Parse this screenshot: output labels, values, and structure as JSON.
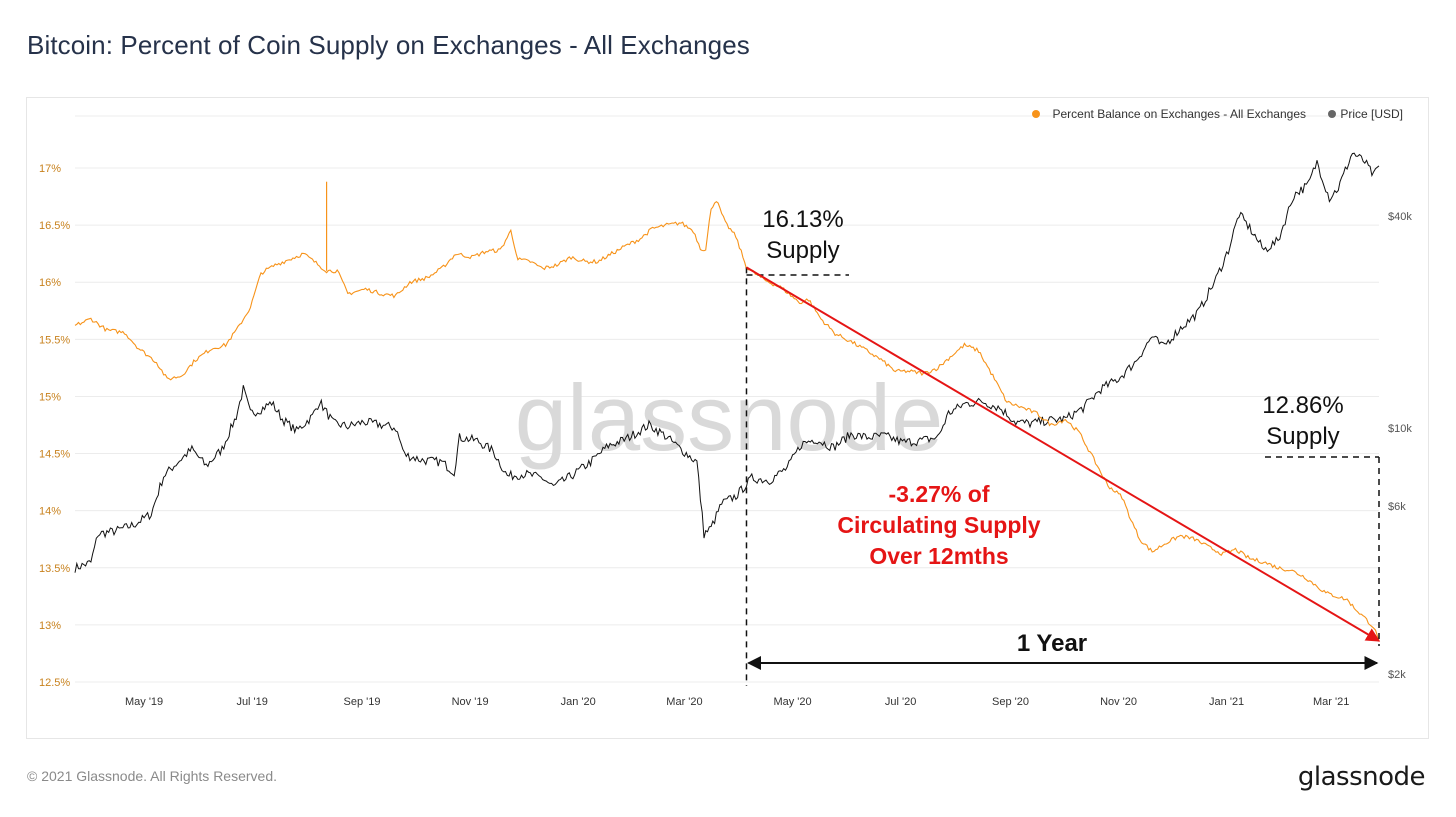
{
  "title": "Bitcoin: Percent of Coin Supply on Exchanges - All Exchanges",
  "footer": {
    "copyright": "© 2021 Glassnode. All Rights Reserved.",
    "logo": "glassnode"
  },
  "colors": {
    "supply": "#F7931A",
    "price": "#111111",
    "annotation_red": "#E51515",
    "grid": "#ececec",
    "axis_text": "#555555",
    "left_axis_text": "#C8821E"
  },
  "chart_data": {
    "type": "line",
    "watermark": "glassnode",
    "legend_position": "top-right",
    "grid": true,
    "legend": [
      {
        "name": "Percent Balance on Exchanges - All Exchanges",
        "color": "#F7931A"
      },
      {
        "name": "Price [USD]",
        "color": "#666666"
      }
    ],
    "x_range": [
      "2019-03-23",
      "2021-03-28"
    ],
    "x_ticks": [
      {
        "date": "2019-05-01",
        "label": "May '19"
      },
      {
        "date": "2019-07-01",
        "label": "Jul '19"
      },
      {
        "date": "2019-09-01",
        "label": "Sep '19"
      },
      {
        "date": "2019-11-01",
        "label": "Nov '19"
      },
      {
        "date": "2020-01-01",
        "label": "Jan '20"
      },
      {
        "date": "2020-03-01",
        "label": "Mar '20"
      },
      {
        "date": "2020-05-01",
        "label": "May '20"
      },
      {
        "date": "2020-07-01",
        "label": "Jul '20"
      },
      {
        "date": "2020-09-01",
        "label": "Sep '20"
      },
      {
        "date": "2020-11-01",
        "label": "Nov '20"
      },
      {
        "date": "2021-01-01",
        "label": "Jan '21"
      },
      {
        "date": "2021-03-01",
        "label": "Mar '21"
      }
    ],
    "y_left": {
      "ylim": [
        12.5,
        17.0
      ],
      "ticks": [
        {
          "value": 17.0,
          "label": "17%"
        },
        {
          "value": 16.5,
          "label": "16.5%"
        },
        {
          "value": 16.0,
          "label": "16%"
        },
        {
          "value": 15.5,
          "label": "15.5%"
        },
        {
          "value": 15.0,
          "label": "15%"
        },
        {
          "value": 14.5,
          "label": "14.5%"
        },
        {
          "value": 14.0,
          "label": "14%"
        },
        {
          "value": 13.5,
          "label": "13.5%"
        },
        {
          "value": 13.0,
          "label": "13%"
        },
        {
          "value": 12.5,
          "label": "12.5%"
        }
      ]
    },
    "y_right": {
      "scale": "log",
      "ticks": [
        {
          "value": 40000,
          "label": "$40k"
        },
        {
          "value": 10000,
          "label": "$10k"
        },
        {
          "value": 6000,
          "label": "$6k"
        },
        {
          "value": 2000,
          "label": "$2k"
        }
      ]
    },
    "series": [
      {
        "name": "Percent Balance on Exchanges - All Exchanges",
        "axis": "left",
        "points": [
          [
            "2019-03-23",
            15.62
          ],
          [
            "2019-04-01",
            15.68
          ],
          [
            "2019-04-10",
            15.58
          ],
          [
            "2019-04-20",
            15.56
          ],
          [
            "2019-04-28",
            15.42
          ],
          [
            "2019-05-08",
            15.3
          ],
          [
            "2019-05-14",
            15.15
          ],
          [
            "2019-05-22",
            15.18
          ],
          [
            "2019-05-30",
            15.32
          ],
          [
            "2019-06-08",
            15.42
          ],
          [
            "2019-06-16",
            15.45
          ],
          [
            "2019-06-23",
            15.6
          ],
          [
            "2019-06-30",
            15.78
          ],
          [
            "2019-07-06",
            16.08
          ],
          [
            "2019-07-14",
            16.15
          ],
          [
            "2019-07-22",
            16.2
          ],
          [
            "2019-07-30",
            16.25
          ],
          [
            "2019-08-05",
            16.18
          ],
          [
            "2019-08-12",
            16.1
          ],
          [
            "2019-08-18",
            16.1
          ],
          [
            "2019-08-24",
            15.9
          ],
          [
            "2019-09-03",
            15.94
          ],
          [
            "2019-09-12",
            15.9
          ],
          [
            "2019-09-20",
            15.88
          ],
          [
            "2019-09-28",
            16.0
          ],
          [
            "2019-10-08",
            16.04
          ],
          [
            "2019-10-16",
            16.12
          ],
          [
            "2019-10-24",
            16.25
          ],
          [
            "2019-11-02",
            16.22
          ],
          [
            "2019-11-10",
            16.27
          ],
          [
            "2019-11-18",
            16.28
          ],
          [
            "2019-11-24",
            16.45
          ],
          [
            "2019-11-28",
            16.2
          ],
          [
            "2019-12-05",
            16.18
          ],
          [
            "2019-12-12",
            16.12
          ],
          [
            "2019-12-20",
            16.15
          ],
          [
            "2019-12-28",
            16.22
          ],
          [
            "2020-01-05",
            16.18
          ],
          [
            "2020-01-12",
            16.18
          ],
          [
            "2020-01-20",
            16.25
          ],
          [
            "2020-01-28",
            16.32
          ],
          [
            "2020-02-05",
            16.38
          ],
          [
            "2020-02-12",
            16.47
          ],
          [
            "2020-02-20",
            16.5
          ],
          [
            "2020-02-28",
            16.52
          ],
          [
            "2020-03-06",
            16.45
          ],
          [
            "2020-03-10",
            16.3
          ],
          [
            "2020-03-13",
            16.28
          ],
          [
            "2020-03-16",
            16.65
          ],
          [
            "2020-03-19",
            16.72
          ],
          [
            "2020-03-24",
            16.52
          ],
          [
            "2020-03-30",
            16.4
          ],
          [
            "2020-04-05",
            16.13
          ],
          [
            "2020-04-15",
            16.02
          ],
          [
            "2020-04-25",
            15.95
          ],
          [
            "2020-05-05",
            15.82
          ],
          [
            "2020-05-10",
            15.85
          ],
          [
            "2020-05-17",
            15.68
          ],
          [
            "2020-05-25",
            15.55
          ],
          [
            "2020-06-03",
            15.48
          ],
          [
            "2020-06-12",
            15.4
          ],
          [
            "2020-06-20",
            15.32
          ],
          [
            "2020-06-28",
            15.22
          ],
          [
            "2020-07-06",
            15.22
          ],
          [
            "2020-07-14",
            15.2
          ],
          [
            "2020-07-22",
            15.25
          ],
          [
            "2020-07-30",
            15.36
          ],
          [
            "2020-08-06",
            15.45
          ],
          [
            "2020-08-14",
            15.4
          ],
          [
            "2020-08-22",
            15.18
          ],
          [
            "2020-08-30",
            14.95
          ],
          [
            "2020-09-08",
            14.9
          ],
          [
            "2020-09-16",
            14.85
          ],
          [
            "2020-09-24",
            14.75
          ],
          [
            "2020-10-02",
            14.8
          ],
          [
            "2020-10-10",
            14.68
          ],
          [
            "2020-10-18",
            14.45
          ],
          [
            "2020-10-26",
            14.22
          ],
          [
            "2020-11-03",
            14.12
          ],
          [
            "2020-11-08",
            13.92
          ],
          [
            "2020-11-13",
            13.75
          ],
          [
            "2020-11-20",
            13.64
          ],
          [
            "2020-11-28",
            13.72
          ],
          [
            "2020-12-06",
            13.78
          ],
          [
            "2020-12-14",
            13.75
          ],
          [
            "2020-12-22",
            13.68
          ],
          [
            "2020-12-30",
            13.62
          ],
          [
            "2021-01-06",
            13.66
          ],
          [
            "2021-01-14",
            13.58
          ],
          [
            "2021-01-22",
            13.55
          ],
          [
            "2021-01-30",
            13.5
          ],
          [
            "2021-02-06",
            13.48
          ],
          [
            "2021-02-14",
            13.42
          ],
          [
            "2021-02-20",
            13.35
          ],
          [
            "2021-02-26",
            13.28
          ],
          [
            "2021-03-04",
            13.25
          ],
          [
            "2021-03-10",
            13.22
          ],
          [
            "2021-03-14",
            13.15
          ],
          [
            "2021-03-20",
            13.06
          ],
          [
            "2021-03-25",
            12.98
          ],
          [
            "2021-03-28",
            12.86
          ]
        ]
      },
      {
        "name": "Price [USD]",
        "axis": "right",
        "points": [
          [
            "2019-03-23",
            4000
          ],
          [
            "2019-04-01",
            4150
          ],
          [
            "2019-04-05",
            5000
          ],
          [
            "2019-04-15",
            5100
          ],
          [
            "2019-04-25",
            5300
          ],
          [
            "2019-05-05",
            5700
          ],
          [
            "2019-05-12",
            7300
          ],
          [
            "2019-05-20",
            8000
          ],
          [
            "2019-05-28",
            8700
          ],
          [
            "2019-06-05",
            7800
          ],
          [
            "2019-06-14",
            8700
          ],
          [
            "2019-06-22",
            10800
          ],
          [
            "2019-06-26",
            12900
          ],
          [
            "2019-06-30",
            11000
          ],
          [
            "2019-07-06",
            11300
          ],
          [
            "2019-07-12",
            11800
          ],
          [
            "2019-07-18",
            10600
          ],
          [
            "2019-07-26",
            9800
          ],
          [
            "2019-08-04",
            10800
          ],
          [
            "2019-08-08",
            11900
          ],
          [
            "2019-08-16",
            10300
          ],
          [
            "2019-08-24",
            10100
          ],
          [
            "2019-09-02",
            10400
          ],
          [
            "2019-09-12",
            10200
          ],
          [
            "2019-09-20",
            10000
          ],
          [
            "2019-09-25",
            8400
          ],
          [
            "2019-10-05",
            8100
          ],
          [
            "2019-10-16",
            8000
          ],
          [
            "2019-10-23",
            7500
          ],
          [
            "2019-10-26",
            9400
          ],
          [
            "2019-11-05",
            9200
          ],
          [
            "2019-11-14",
            8600
          ],
          [
            "2019-11-22",
            7300
          ],
          [
            "2019-12-02",
            7400
          ],
          [
            "2019-12-12",
            7200
          ],
          [
            "2019-12-18",
            6800
          ],
          [
            "2019-12-28",
            7300
          ],
          [
            "2020-01-08",
            8000
          ],
          [
            "2020-01-18",
            8900
          ],
          [
            "2020-01-28",
            9300
          ],
          [
            "2020-02-10",
            10200
          ],
          [
            "2020-02-18",
            9600
          ],
          [
            "2020-02-28",
            8700
          ],
          [
            "2020-03-08",
            8000
          ],
          [
            "2020-03-12",
            5000
          ],
          [
            "2020-03-16",
            5200
          ],
          [
            "2020-03-22",
            6100
          ],
          [
            "2020-03-30",
            6400
          ],
          [
            "2020-04-08",
            7200
          ],
          [
            "2020-04-18",
            7100
          ],
          [
            "2020-04-28",
            7700
          ],
          [
            "2020-05-06",
            9000
          ],
          [
            "2020-05-14",
            9300
          ],
          [
            "2020-05-24",
            8800
          ],
          [
            "2020-06-03",
            9600
          ],
          [
            "2020-06-12",
            9400
          ],
          [
            "2020-06-22",
            9500
          ],
          [
            "2020-07-02",
            9100
          ],
          [
            "2020-07-12",
            9200
          ],
          [
            "2020-07-22",
            9400
          ],
          [
            "2020-07-28",
            11000
          ],
          [
            "2020-08-06",
            11700
          ],
          [
            "2020-08-16",
            11900
          ],
          [
            "2020-08-26",
            11400
          ],
          [
            "2020-09-04",
            10400
          ],
          [
            "2020-09-12",
            10300
          ],
          [
            "2020-09-22",
            10500
          ],
          [
            "2020-10-02",
            10600
          ],
          [
            "2020-10-12",
            11400
          ],
          [
            "2020-10-22",
            12900
          ],
          [
            "2020-11-01",
            13800
          ],
          [
            "2020-11-10",
            15300
          ],
          [
            "2020-11-20",
            18200
          ],
          [
            "2020-11-26",
            17000
          ],
          [
            "2020-12-06",
            19200
          ],
          [
            "2020-12-16",
            21300
          ],
          [
            "2020-12-26",
            26500
          ],
          [
            "2021-01-02",
            32000
          ],
          [
            "2021-01-08",
            40500
          ],
          [
            "2021-01-14",
            37000
          ],
          [
            "2021-01-22",
            32000
          ],
          [
            "2021-01-30",
            34000
          ],
          [
            "2021-02-08",
            46000
          ],
          [
            "2021-02-16",
            49000
          ],
          [
            "2021-02-21",
            57000
          ],
          [
            "2021-02-28",
            45000
          ],
          [
            "2021-03-05",
            48000
          ],
          [
            "2021-03-13",
            60500
          ],
          [
            "2021-03-20",
            57000
          ],
          [
            "2021-03-25",
            52000
          ],
          [
            "2021-03-28",
            55500
          ]
        ]
      }
    ],
    "annotations": {
      "start_label": [
        "16.13%",
        "Supply"
      ],
      "end_label": [
        "12.86%",
        "Supply"
      ],
      "trend_start": [
        "2020-04-05",
        16.13
      ],
      "trend_end": [
        "2021-03-28",
        12.86
      ],
      "change_label": [
        "-3.27% of",
        "Circulating Supply",
        "Over 12mths"
      ],
      "duration_label": "1 Year"
    }
  }
}
